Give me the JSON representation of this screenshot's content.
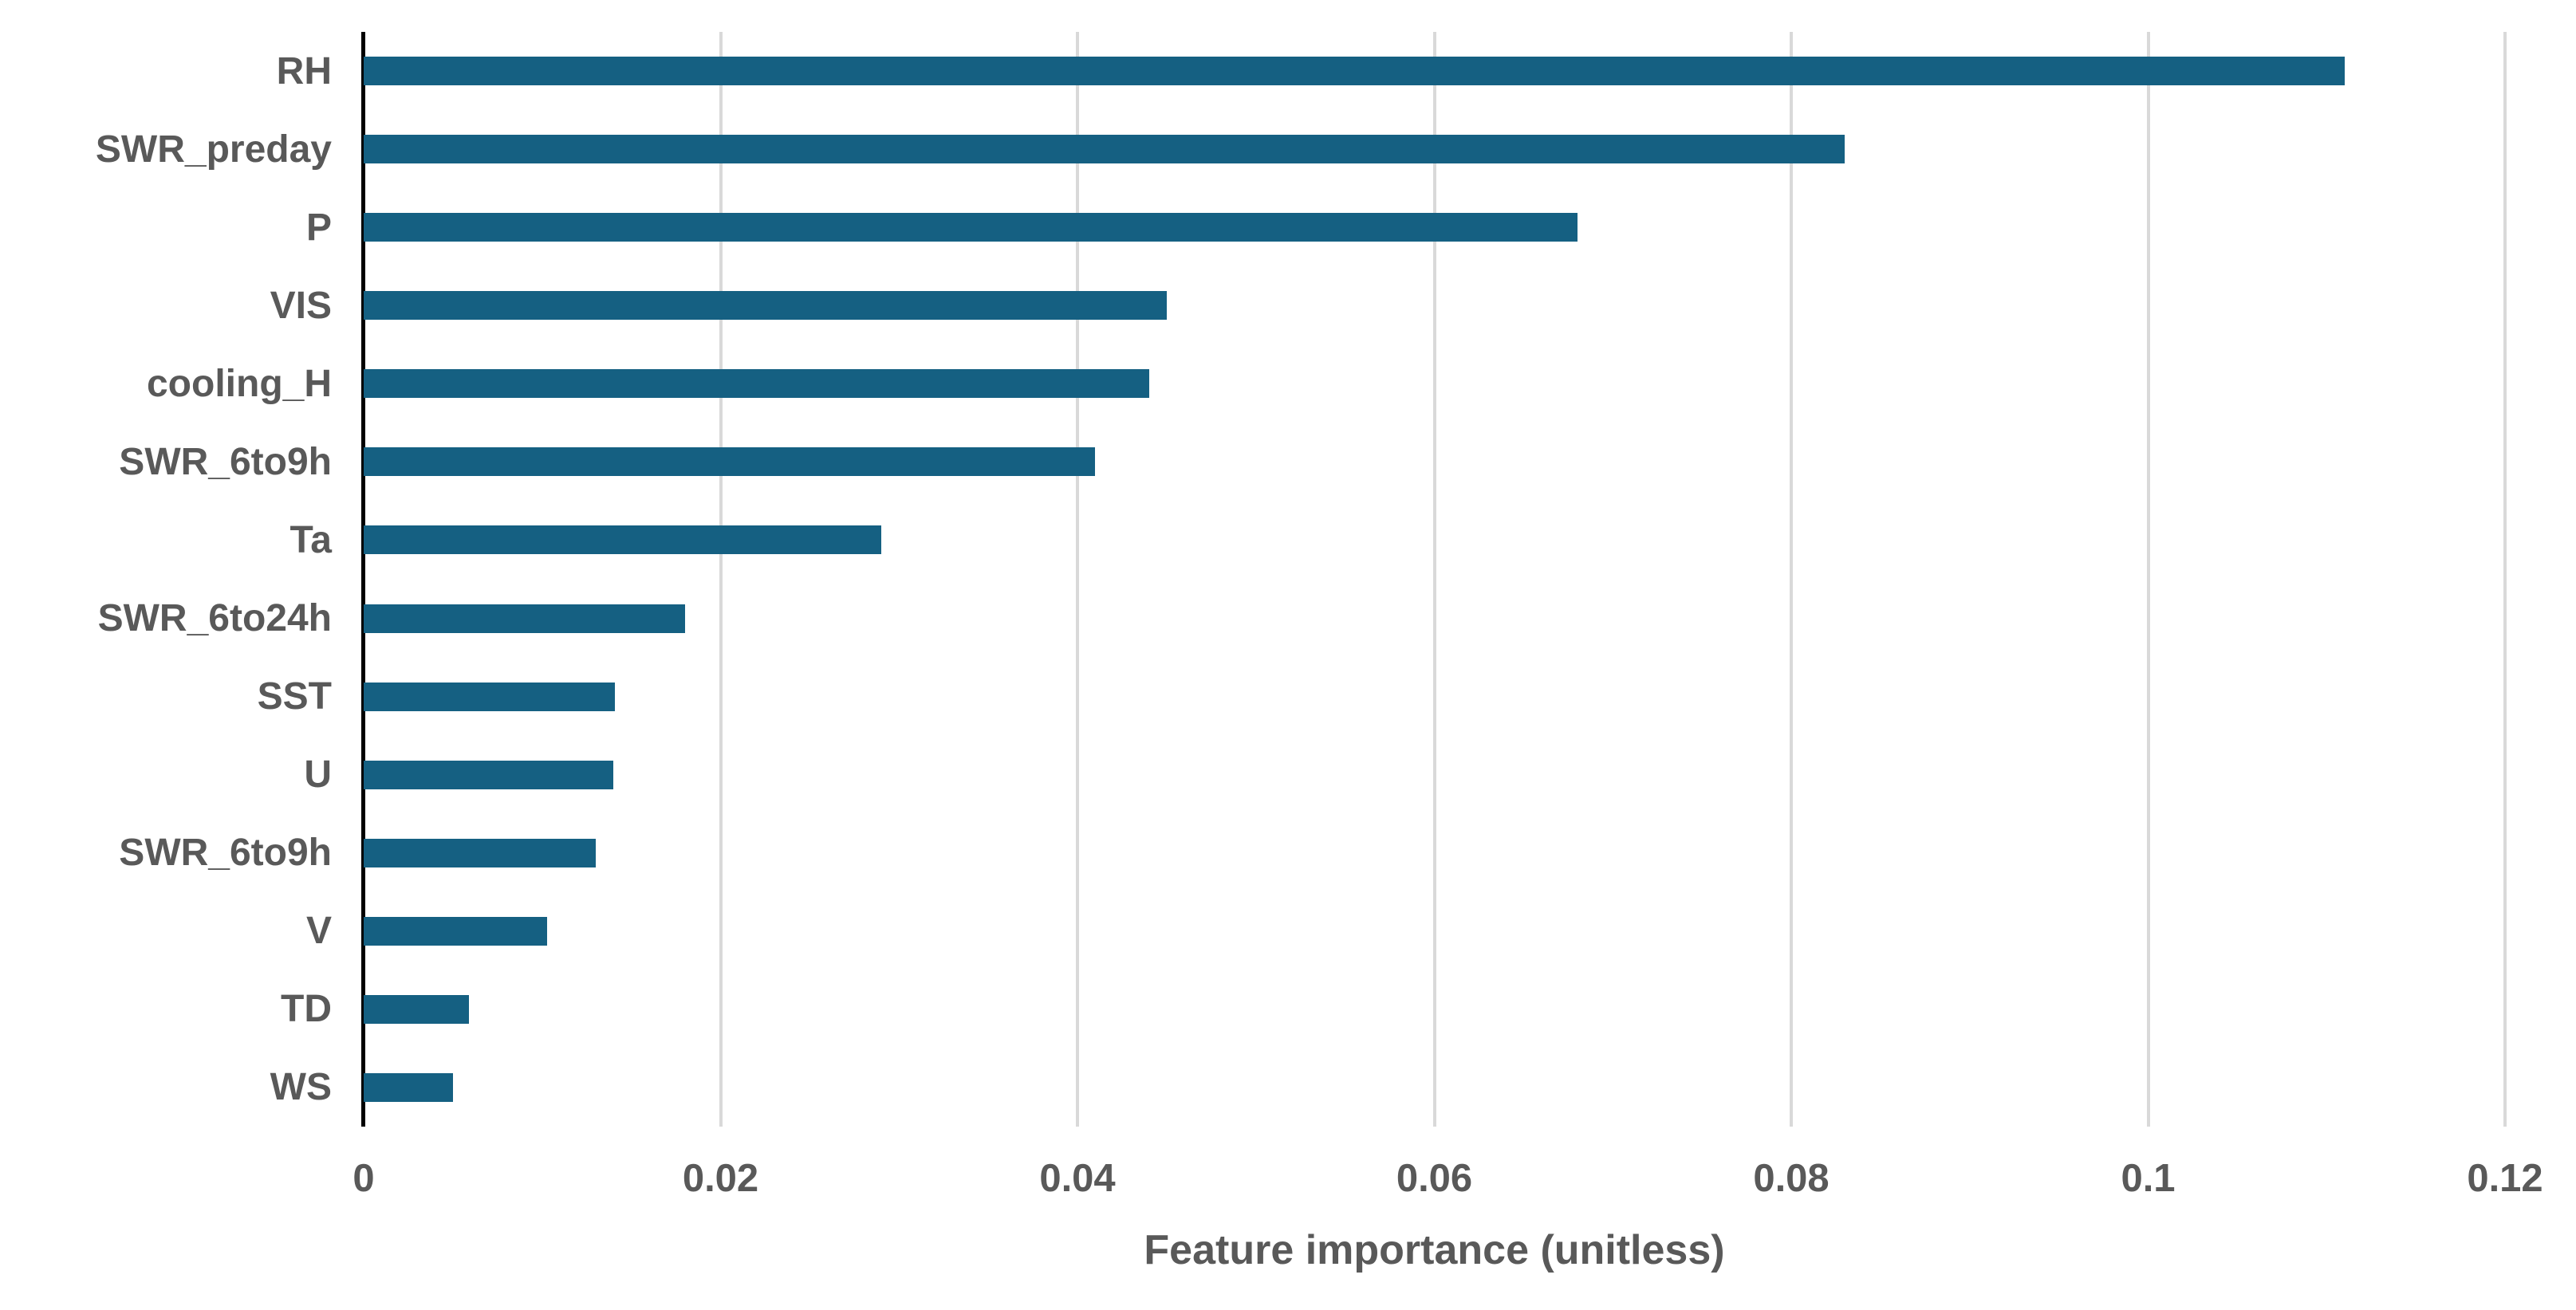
{
  "chart_data": {
    "type": "bar",
    "orientation": "horizontal",
    "title": "",
    "xlabel": "Feature importance (unitless)",
    "ylabel": "",
    "categories": [
      "RH",
      "SWR_preday",
      "P",
      "VIS",
      "cooling_H",
      "SWR_6to9h",
      "Ta",
      "SWR_6to24h",
      "SST",
      "U",
      "SWR_6to9h",
      "V",
      "TD",
      "WS"
    ],
    "values": [
      0.111,
      0.083,
      0.068,
      0.045,
      0.044,
      0.041,
      0.029,
      0.018,
      0.0141,
      0.014,
      0.013,
      0.0103,
      0.0059,
      0.005
    ],
    "xlim": [
      0,
      0.12
    ],
    "xticks": [
      0,
      0.02,
      0.04,
      0.06,
      0.08,
      0.1,
      0.12
    ],
    "xtick_labels": [
      "0",
      "0.02",
      "0.04",
      "0.06",
      "0.08",
      "0.1",
      "0.12"
    ],
    "grid": "vertical-gridlines-at-each-xtick",
    "legend_position": "none",
    "colors": {
      "bar": "#156082",
      "tick_label": "#595959",
      "axis_title": "#595959",
      "gridline": "#d9d9d9",
      "axis_line": "#000000",
      "background": "#ffffff"
    }
  }
}
